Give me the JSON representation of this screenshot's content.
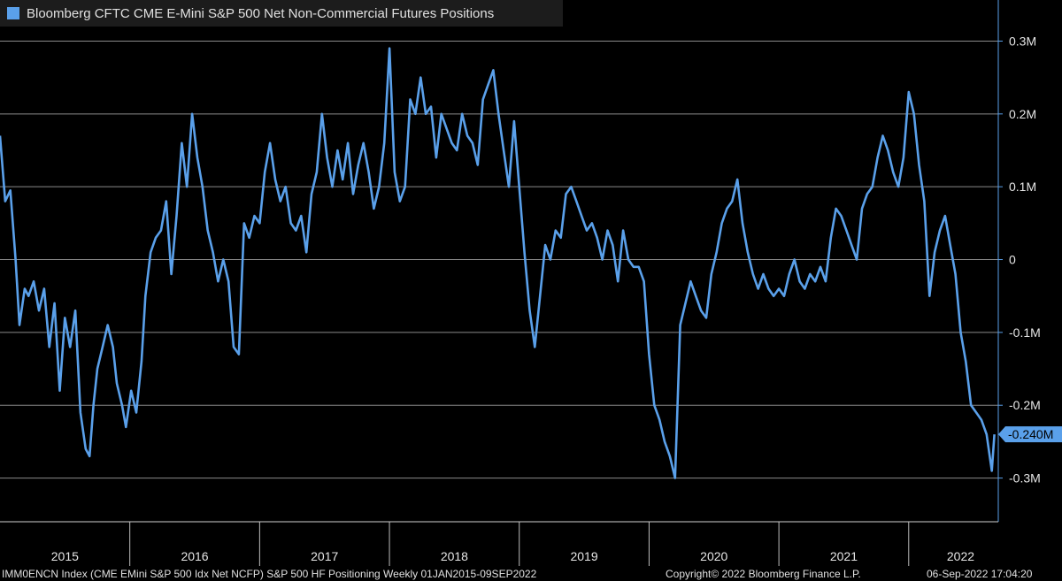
{
  "legend": {
    "label": "Bloomberg CFTC CME E-Mini S&P 500 Net Non-Commercial Futures Positions",
    "color": "#5aa0ea"
  },
  "footer": {
    "source": "IMM0ENCN Index (CME EMini S&P 500 Idx Net NCFP) S&P 500 HF Positioning  Weekly 01JAN2015-09SEP2022",
    "copyright": "Copyright© 2022 Bloomberg Finance L.P.",
    "timestamp": "06-Sep-2022 17:04:20"
  },
  "chart_data": {
    "type": "line",
    "y_tick_labels": [
      "0.3M",
      "0.2M",
      "0.1M",
      "0",
      "-0.1M",
      "-0.2M",
      "-0.3M"
    ],
    "y_tick_values": [
      0.3,
      0.2,
      0.1,
      0,
      -0.1,
      -0.2,
      -0.3
    ],
    "ylim": [
      -0.36,
      0.32
    ],
    "xlim": [
      2015.0,
      2022.69
    ],
    "x_tick_labels": [
      "2015",
      "2016",
      "2017",
      "2018",
      "2019",
      "2020",
      "2021",
      "2022"
    ],
    "x_tick_values": [
      2015.5,
      2016.5,
      2017.5,
      2018.5,
      2019.5,
      2020.5,
      2021.5,
      2022.4
    ],
    "year_boundaries": [
      2016,
      2017,
      2018,
      2019,
      2020,
      2021,
      2022
    ],
    "last_value_label": "-0.240M",
    "last_value": -0.24,
    "grid": true,
    "legend_position": "top-left",
    "series": [
      {
        "color": "#5aa0ea",
        "x": [
          2015.0,
          2015.04,
          2015.08,
          2015.12,
          2015.15,
          2015.19,
          2015.22,
          2015.26,
          2015.3,
          2015.34,
          2015.38,
          2015.42,
          2015.46,
          2015.5,
          2015.54,
          2015.58,
          2015.62,
          2015.66,
          2015.69,
          2015.72,
          2015.75,
          2015.79,
          2015.83,
          2015.87,
          2015.9,
          2015.94,
          2015.97,
          2016.01,
          2016.05,
          2016.09,
          2016.12,
          2016.16,
          2016.2,
          2016.24,
          2016.28,
          2016.32,
          2016.36,
          2016.4,
          2016.44,
          2016.48,
          2016.52,
          2016.56,
          2016.6,
          2016.64,
          2016.68,
          2016.72,
          2016.76,
          2016.8,
          2016.84,
          2016.88,
          2016.92,
          2016.96,
          2017.0,
          2017.04,
          2017.08,
          2017.12,
          2017.16,
          2017.2,
          2017.24,
          2017.28,
          2017.32,
          2017.36,
          2017.4,
          2017.44,
          2017.48,
          2017.52,
          2017.56,
          2017.6,
          2017.64,
          2017.68,
          2017.72,
          2017.76,
          2017.8,
          2017.84,
          2017.88,
          2017.92,
          2017.96,
          2018.0,
          2018.04,
          2018.08,
          2018.12,
          2018.16,
          2018.2,
          2018.24,
          2018.28,
          2018.32,
          2018.36,
          2018.4,
          2018.44,
          2018.48,
          2018.52,
          2018.56,
          2018.6,
          2018.64,
          2018.68,
          2018.72,
          2018.76,
          2018.8,
          2018.84,
          2018.88,
          2018.92,
          2018.96,
          2019.0,
          2019.04,
          2019.08,
          2019.12,
          2019.16,
          2019.2,
          2019.24,
          2019.28,
          2019.32,
          2019.36,
          2019.4,
          2019.44,
          2019.48,
          2019.52,
          2019.56,
          2019.6,
          2019.64,
          2019.68,
          2019.72,
          2019.76,
          2019.8,
          2019.84,
          2019.88,
          2019.92,
          2019.96,
          2020.0,
          2020.04,
          2020.08,
          2020.12,
          2020.16,
          2020.2,
          2020.24,
          2020.28,
          2020.32,
          2020.36,
          2020.4,
          2020.44,
          2020.48,
          2020.52,
          2020.56,
          2020.6,
          2020.64,
          2020.68,
          2020.72,
          2020.76,
          2020.8,
          2020.84,
          2020.88,
          2020.92,
          2020.96,
          2021.0,
          2021.04,
          2021.08,
          2021.12,
          2021.16,
          2021.2,
          2021.24,
          2021.28,
          2021.32,
          2021.36,
          2021.4,
          2021.44,
          2021.48,
          2021.52,
          2021.56,
          2021.6,
          2021.64,
          2021.68,
          2021.72,
          2021.76,
          2021.8,
          2021.84,
          2021.88,
          2021.92,
          2021.96,
          2022.0,
          2022.04,
          2022.08,
          2022.12,
          2022.16,
          2022.2,
          2022.24,
          2022.28,
          2022.32,
          2022.36,
          2022.4,
          2022.44,
          2022.48,
          2022.52,
          2022.56,
          2022.6,
          2022.64,
          2022.66
        ],
        "values": [
          0.17,
          0.08,
          0.095,
          0.0,
          -0.09,
          -0.04,
          -0.05,
          -0.03,
          -0.07,
          -0.04,
          -0.12,
          -0.06,
          -0.18,
          -0.08,
          -0.12,
          -0.07,
          -0.21,
          -0.26,
          -0.27,
          -0.2,
          -0.15,
          -0.12,
          -0.09,
          -0.12,
          -0.17,
          -0.2,
          -0.23,
          -0.18,
          -0.21,
          -0.14,
          -0.05,
          0.01,
          0.03,
          0.04,
          0.08,
          -0.02,
          0.06,
          0.16,
          0.1,
          0.2,
          0.14,
          0.1,
          0.04,
          0.01,
          -0.03,
          0.0,
          -0.03,
          -0.12,
          -0.13,
          0.05,
          0.03,
          0.06,
          0.05,
          0.12,
          0.16,
          0.11,
          0.08,
          0.1,
          0.05,
          0.04,
          0.06,
          0.01,
          0.09,
          0.12,
          0.2,
          0.14,
          0.1,
          0.15,
          0.11,
          0.16,
          0.09,
          0.13,
          0.16,
          0.12,
          0.07,
          0.1,
          0.16,
          0.29,
          0.12,
          0.08,
          0.1,
          0.22,
          0.2,
          0.25,
          0.2,
          0.21,
          0.14,
          0.2,
          0.18,
          0.16,
          0.15,
          0.2,
          0.17,
          0.16,
          0.13,
          0.22,
          0.24,
          0.26,
          0.2,
          0.15,
          0.1,
          0.19,
          0.1,
          0.01,
          -0.07,
          -0.12,
          -0.05,
          0.02,
          0.0,
          0.04,
          0.03,
          0.09,
          0.1,
          0.08,
          0.06,
          0.04,
          0.05,
          0.03,
          0.0,
          0.04,
          0.02,
          -0.03,
          0.04,
          0.0,
          -0.01,
          -0.01,
          -0.03,
          -0.13,
          -0.2,
          -0.22,
          -0.25,
          -0.27,
          -0.3,
          -0.09,
          -0.06,
          -0.03,
          -0.05,
          -0.07,
          -0.08,
          -0.02,
          0.01,
          0.05,
          0.07,
          0.08,
          0.11,
          0.05,
          0.01,
          -0.02,
          -0.04,
          -0.02,
          -0.04,
          -0.05,
          -0.04,
          -0.05,
          -0.02,
          0.0,
          -0.03,
          -0.04,
          -0.02,
          -0.03,
          -0.01,
          -0.03,
          0.03,
          0.07,
          0.06,
          0.04,
          0.02,
          0.0,
          0.07,
          0.09,
          0.1,
          0.14,
          0.17,
          0.15,
          0.12,
          0.1,
          0.14,
          0.23,
          0.2,
          0.13,
          0.08,
          -0.05,
          0.01,
          0.04,
          0.06,
          0.02,
          -0.02,
          -0.1,
          -0.14,
          -0.2,
          -0.21,
          -0.22,
          -0.24,
          -0.29,
          -0.24
        ]
      }
    ]
  }
}
